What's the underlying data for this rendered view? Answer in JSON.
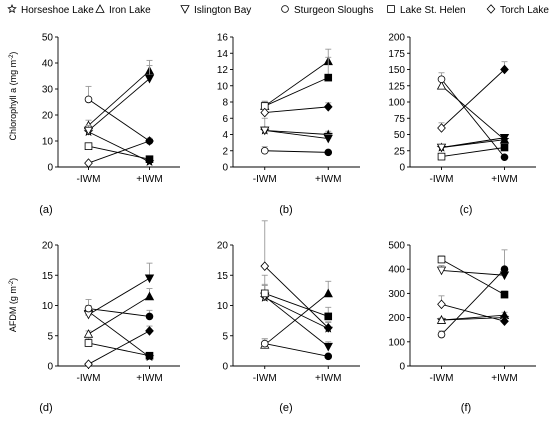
{
  "legend": {
    "items": [
      {
        "label": "Horseshoe Lake",
        "symbol": "star"
      },
      {
        "label": "Iron Lake",
        "symbol": "triangle-up"
      },
      {
        "label": "Islington Bay",
        "symbol": "triangle-down"
      },
      {
        "label": "Sturgeon Sloughs",
        "symbol": "circle"
      },
      {
        "label": "Lake St. Helen",
        "symbol": "square"
      },
      {
        "label": "Torch Lake",
        "symbol": "diamond"
      }
    ]
  },
  "y_titles": {
    "top": "Chlorophyll a (mg m<sup>-2</sup>)",
    "top_main": "Chlorophyll a (mg m",
    "top_sup": "-2",
    "top_end": ")",
    "bottom_main": "AFDM (g m",
    "bottom_sup": "-2",
    "bottom_end": ")"
  },
  "chart_data": [
    {
      "type": "scatter",
      "panel": "(a)",
      "categories": [
        "-IWM",
        "+IWM"
      ],
      "ylim": [
        0,
        50
      ],
      "yticks": [
        0,
        10,
        20,
        30,
        40,
        50
      ],
      "series": [
        {
          "name": "Horseshoe Lake",
          "values": [
            13.5,
            2
          ],
          "err": [
            1.5,
            0.5
          ]
        },
        {
          "name": "Iron Lake",
          "values": [
            16,
            37
          ],
          "err": [
            2,
            4
          ]
        },
        {
          "name": "Islington Bay",
          "values": [
            14,
            34
          ],
          "err": [
            2,
            5
          ]
        },
        {
          "name": "Sturgeon Sloughs",
          "values": [
            26,
            10
          ],
          "err": [
            5,
            1
          ]
        },
        {
          "name": "Lake St. Helen",
          "values": [
            8,
            3
          ],
          "err": [
            1,
            0.5
          ]
        },
        {
          "name": "Torch Lake",
          "values": [
            1.5,
            10
          ],
          "err": [
            0.5,
            1
          ]
        }
      ]
    },
    {
      "type": "scatter",
      "panel": "(b)",
      "categories": [
        "-IWM",
        "+IWM"
      ],
      "ylim": [
        0,
        16
      ],
      "yticks": [
        0,
        2,
        4,
        6,
        8,
        10,
        12,
        14,
        16
      ],
      "series": [
        {
          "name": "Horseshoe Lake",
          "values": [
            4.5,
            4
          ],
          "err": [
            0.4,
            0.4
          ]
        },
        {
          "name": "Iron Lake",
          "values": [
            7.5,
            13
          ],
          "err": [
            0.6,
            1.5
          ]
        },
        {
          "name": "Islington Bay",
          "values": [
            4.5,
            3.5
          ],
          "err": [
            1.5,
            0.5
          ]
        },
        {
          "name": "Sturgeon Sloughs",
          "values": [
            2,
            1.8
          ],
          "err": [
            0.5,
            0.2
          ]
        },
        {
          "name": "Lake St. Helen",
          "values": [
            7.5,
            11
          ],
          "err": [
            0.5,
            2.5
          ]
        },
        {
          "name": "Torch Lake",
          "values": [
            6.7,
            7.4
          ],
          "err": [
            0.4,
            0.5
          ]
        }
      ]
    },
    {
      "type": "scatter",
      "panel": "(c)",
      "categories": [
        "-IWM",
        "+IWM"
      ],
      "ylim": [
        0,
        200
      ],
      "yticks": [
        0,
        25,
        50,
        75,
        100,
        125,
        150,
        175,
        200
      ],
      "series": [
        {
          "name": "Horseshoe Lake",
          "values": [
            30,
            42
          ],
          "err": [
            3,
            4
          ]
        },
        {
          "name": "Iron Lake",
          "values": [
            125,
            42
          ],
          "err": [
            8,
            4
          ]
        },
        {
          "name": "Islington Bay",
          "values": [
            30,
            45
          ],
          "err": [
            3,
            5
          ]
        },
        {
          "name": "Sturgeon Sloughs",
          "values": [
            135,
            15
          ],
          "err": [
            10,
            2
          ]
        },
        {
          "name": "Lake St. Helen",
          "values": [
            16,
            30
          ],
          "err": [
            2,
            4
          ]
        },
        {
          "name": "Torch Lake",
          "values": [
            60,
            150
          ],
          "err": [
            8,
            12
          ]
        }
      ]
    },
    {
      "type": "scatter",
      "panel": "(d)",
      "categories": [
        "-IWM",
        "+IWM"
      ],
      "ylim": [
        0,
        20
      ],
      "yticks": [
        0,
        5,
        10,
        15,
        20
      ],
      "series": [
        {
          "name": "Horseshoe Lake",
          "values": [
            9,
            1.5
          ],
          "err": [
            1,
            0.3
          ]
        },
        {
          "name": "Iron Lake",
          "values": [
            5.3,
            11.5
          ],
          "err": [
            0.5,
            1.3
          ]
        },
        {
          "name": "Islington Bay",
          "values": [
            8.5,
            14.5
          ],
          "err": [
            1,
            2.5
          ]
        },
        {
          "name": "Sturgeon Sloughs",
          "values": [
            9.5,
            8.2
          ],
          "err": [
            1.5,
            1
          ]
        },
        {
          "name": "Lake St. Helen",
          "values": [
            3.8,
            1.7
          ],
          "err": [
            0.8,
            0.4
          ]
        },
        {
          "name": "Torch Lake",
          "values": [
            0.3,
            5.8
          ],
          "err": [
            0.1,
            0.8
          ]
        }
      ]
    },
    {
      "type": "scatter",
      "panel": "(e)",
      "categories": [
        "-IWM",
        "+IWM"
      ],
      "ylim": [
        0,
        20
      ],
      "yticks": [
        0,
        5,
        10,
        15,
        20
      ],
      "series": [
        {
          "name": "Horseshoe Lake",
          "values": [
            11.3,
            6.2
          ],
          "err": [
            2,
            1
          ]
        },
        {
          "name": "Iron Lake",
          "values": [
            3.5,
            12
          ],
          "err": [
            1,
            2
          ]
        },
        {
          "name": "Islington Bay",
          "values": [
            11.5,
            3.2
          ],
          "err": [
            2,
            0.8
          ]
        },
        {
          "name": "Sturgeon Sloughs",
          "values": [
            3.7,
            1.6
          ],
          "err": [
            0.8,
            0.3
          ]
        },
        {
          "name": "Lake St. Helen",
          "values": [
            12,
            8.2
          ],
          "err": [
            3,
            1.5
          ]
        },
        {
          "name": "Torch Lake",
          "values": [
            16.5,
            6.3
          ],
          "err": [
            7.5,
            1
          ]
        }
      ]
    },
    {
      "type": "scatter",
      "panel": "(f)",
      "categories": [
        "-IWM",
        "+IWM"
      ],
      "ylim": [
        0,
        500
      ],
      "yticks": [
        0,
        100,
        200,
        300,
        400,
        500
      ],
      "series": [
        {
          "name": "Horseshoe Lake",
          "values": [
            190,
            200
          ],
          "err": [
            8,
            10
          ]
        },
        {
          "name": "Iron Lake",
          "values": [
            190,
            210
          ],
          "err": [
            8,
            12
          ]
        },
        {
          "name": "Islington Bay",
          "values": [
            395,
            375
          ],
          "err": [
            20,
            15
          ]
        },
        {
          "name": "Sturgeon Sloughs",
          "values": [
            130,
            400
          ],
          "err": [
            15,
            80
          ]
        },
        {
          "name": "Lake St. Helen",
          "values": [
            440,
            295
          ],
          "err": [
            15,
            15
          ]
        },
        {
          "name": "Torch Lake",
          "values": [
            255,
            185
          ],
          "err": [
            35,
            12
          ]
        }
      ]
    }
  ]
}
